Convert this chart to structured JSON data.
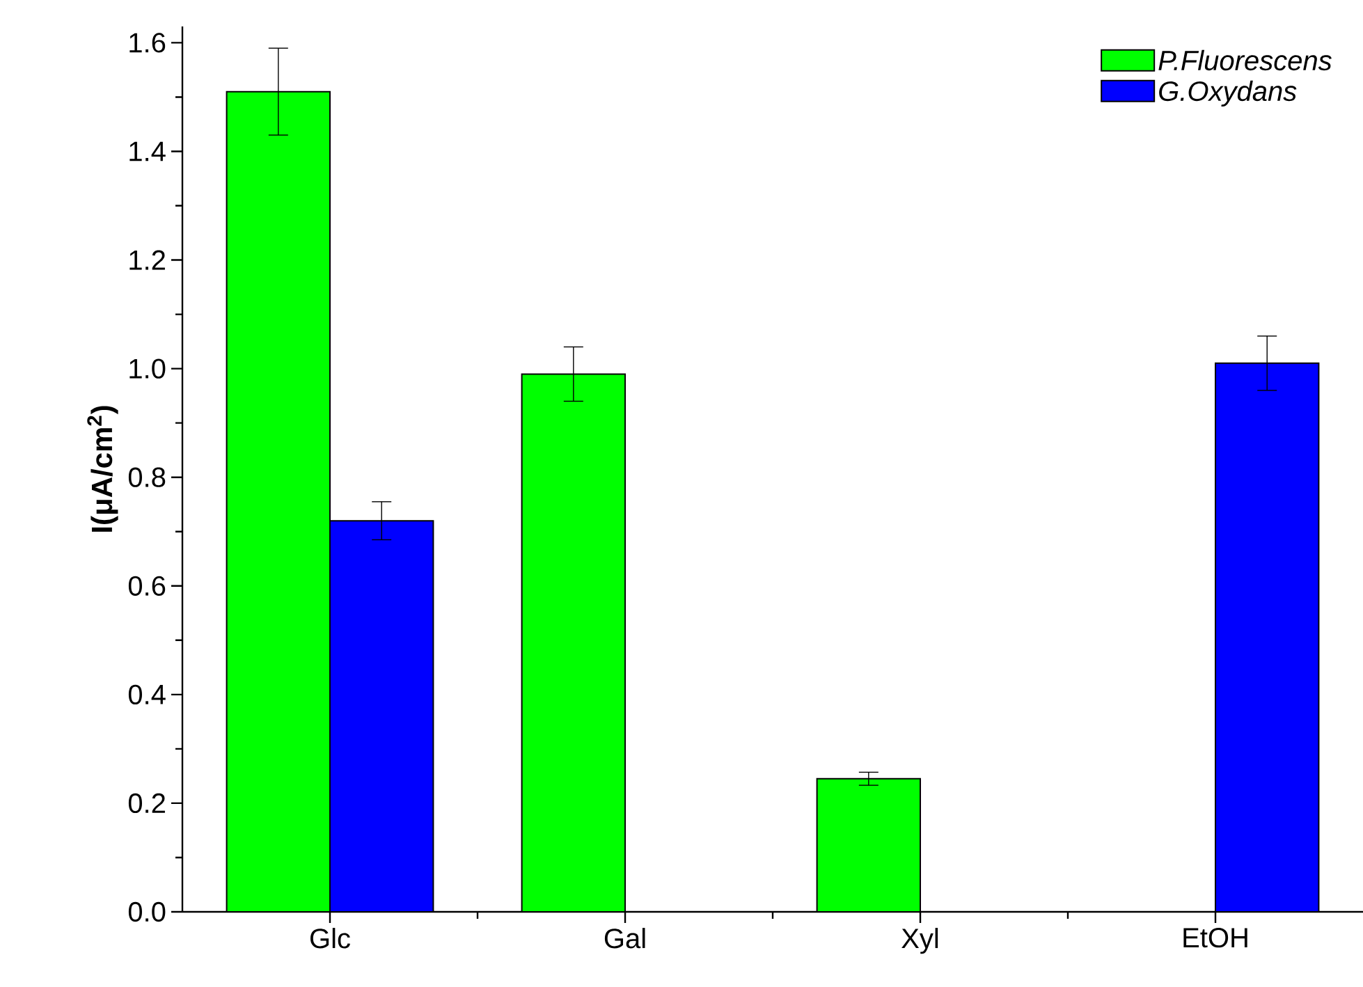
{
  "chart_data": {
    "type": "bar",
    "ylabel": "I(μA/cm$^{2}$)",
    "categories": [
      "Glc",
      "Gal",
      "Xyl",
      "EtOH"
    ],
    "series": [
      {
        "name": "P.Fluorescens",
        "color": "#00ff00",
        "values": [
          1.51,
          0.99,
          0.245,
          null
        ],
        "errors": [
          0.08,
          0.05,
          0.012,
          null
        ]
      },
      {
        "name": "G.Oxydans",
        "color": "#0000ff",
        "values": [
          0.72,
          null,
          null,
          1.01
        ],
        "errors": [
          0.035,
          null,
          null,
          0.05
        ]
      }
    ],
    "ylim": [
      0,
      1.63
    ],
    "yticks": [
      {
        "value": 0,
        "label": "0.0"
      },
      0.2,
      0.4,
      0.6,
      0.8,
      {
        "value": 1,
        "label": "1.0"
      },
      1.2,
      1.4,
      1.6
    ],
    "grid": false,
    "legend": "top right"
  }
}
